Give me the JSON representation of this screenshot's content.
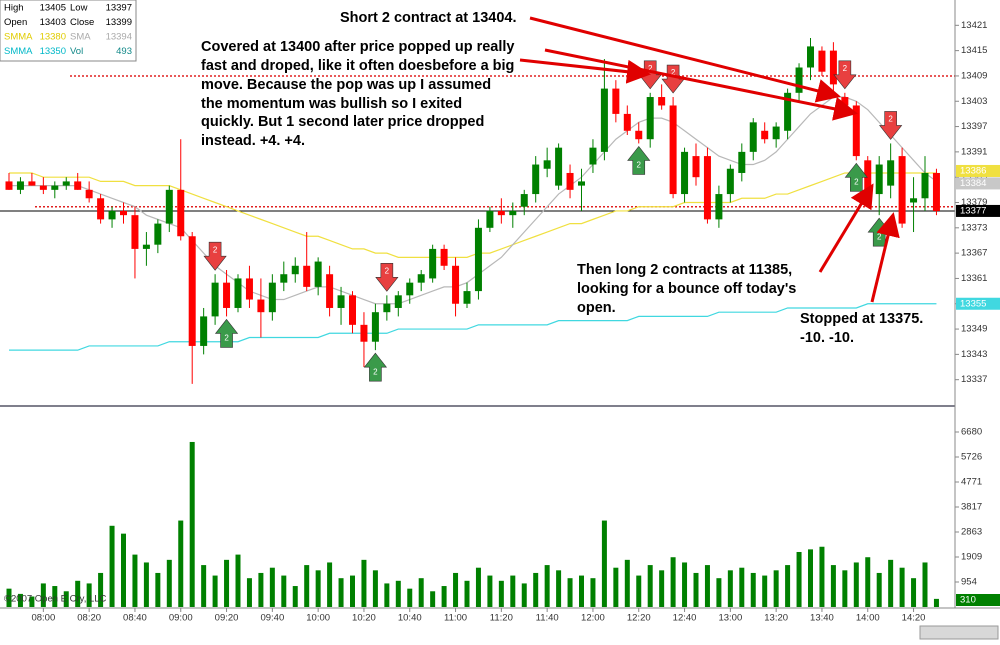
{
  "chart_data": [
    {
      "type": "candlestick",
      "categories": [
        null,
        null,
        null,
        "08:00",
        null,
        null,
        null,
        "08:20",
        null,
        null,
        null,
        "08:40",
        null,
        null,
        null,
        "09:00",
        null,
        null,
        null,
        "09:20",
        null,
        null,
        null,
        "09:40",
        null,
        null,
        null,
        "10:00",
        null,
        null,
        null,
        "10:20",
        null,
        null,
        null,
        "10:40",
        null,
        null,
        null,
        "11:00",
        null,
        null,
        null,
        "11:20",
        null,
        null,
        null,
        "11:40",
        null,
        null,
        null,
        "12:00",
        null,
        null,
        null,
        "12:20",
        null,
        null,
        null,
        "12:40",
        null,
        null,
        null,
        "13:00",
        null,
        null,
        null,
        "13:20",
        null,
        null,
        null,
        "13:40",
        null,
        null,
        null,
        "14:00",
        null,
        null,
        null,
        "14:20",
        null,
        null
      ],
      "open": [
        13384,
        13382,
        13384,
        13383,
        13382,
        13383,
        13384,
        13382,
        13380,
        13375,
        13377,
        13376,
        13368,
        13369,
        13374,
        13382,
        13371,
        13345,
        13352,
        13360,
        13354,
        13361,
        13356,
        13353,
        13360,
        13362,
        13364,
        13359,
        13362,
        13354,
        13357,
        13350,
        13346,
        13353,
        13354,
        13357,
        13360,
        13361,
        13368,
        13364,
        13355,
        13358,
        13373,
        13377,
        13376,
        13378,
        13381,
        13387,
        13383,
        13386,
        13383,
        13388,
        13391,
        13406,
        13400,
        13396,
        13394,
        13404,
        13402,
        13381,
        13390,
        13390,
        13375,
        13381,
        13386,
        13391,
        13396,
        13394,
        13396,
        13405,
        13411,
        13415,
        13415,
        13404,
        13402,
        13389,
        13381,
        13383,
        13390,
        13379,
        13380,
        13386
      ],
      "high": [
        13386,
        13385,
        13386,
        13385,
        13384,
        13385,
        13386,
        13384,
        13381,
        13378,
        13379,
        13378,
        13372,
        13375,
        13383,
        13394,
        13372,
        13354,
        13362,
        13363,
        13362,
        13364,
        13361,
        13362,
        13365,
        13366,
        13372,
        13366,
        13364,
        13359,
        13358,
        13353,
        13355,
        13357,
        13358,
        13361,
        13363,
        13369,
        13369,
        13366,
        13360,
        13375,
        13378,
        13380,
        13379,
        13382,
        13390,
        13392,
        13393,
        13388,
        13387,
        13394,
        13413,
        13408,
        13402,
        13398,
        13405,
        13407,
        13404,
        13392,
        13393,
        13392,
        13383,
        13388,
        13393,
        13399,
        13398,
        13398,
        13406,
        13412,
        13418,
        13416,
        13417,
        13405,
        13403,
        13390,
        13390,
        13393,
        13392,
        13385,
        13390,
        13387
      ],
      "low": [
        13382,
        13381,
        13383,
        13381,
        13380,
        13382,
        13382,
        13379,
        13374,
        13373,
        13374,
        13361,
        13364,
        13367,
        13372,
        13370,
        13336,
        13343,
        13350,
        13352,
        13353,
        13354,
        13347,
        13351,
        13358,
        13360,
        13358,
        13357,
        13352,
        13350,
        13348,
        13340,
        13344,
        13351,
        13352,
        13355,
        13358,
        13360,
        13363,
        13352,
        13354,
        13356,
        13372,
        13374,
        13373,
        13376,
        13379,
        13385,
        13382,
        13380,
        13377,
        13386,
        13389,
        13398,
        13395,
        13393,
        13392,
        13401,
        13380,
        13379,
        13383,
        13374,
        13373,
        13379,
        13384,
        13389,
        13393,
        13392,
        13394,
        13403,
        13408,
        13409,
        13405,
        13400,
        13389,
        13380,
        13376,
        13380,
        13373,
        13372,
        13377,
        13376
      ],
      "close": [
        13382,
        13384,
        13383,
        13382,
        13383,
        13384,
        13382,
        13380,
        13375,
        13377,
        13376,
        13368,
        13369,
        13374,
        13382,
        13371,
        13345,
        13352,
        13360,
        13354,
        13361,
        13356,
        13353,
        13360,
        13362,
        13364,
        13359,
        13365,
        13354,
        13357,
        13350,
        13346,
        13353,
        13355,
        13357,
        13360,
        13362,
        13368,
        13364,
        13355,
        13358,
        13373,
        13377,
        13376,
        13377,
        13381,
        13388,
        13389,
        13392,
        13382,
        13384,
        13392,
        13406,
        13400,
        13396,
        13394,
        13404,
        13402,
        13381,
        13391,
        13385,
        13375,
        13381,
        13387,
        13391,
        13398,
        13394,
        13397,
        13405,
        13411,
        13416,
        13410,
        13407,
        13402,
        13390,
        13381,
        13388,
        13389,
        13374,
        13380,
        13386,
        13377
      ],
      "up_color": "#008000",
      "down_color": "#ff0000",
      "series": [
        {
          "color": "#f0e040",
          "values": [
            13386,
            13386,
            13386,
            13385,
            13385,
            13385,
            13385,
            13385,
            13384,
            13384,
            13384,
            13383,
            13383,
            13383,
            13383,
            13382,
            13381,
            13380,
            13379,
            13378,
            13377,
            13376,
            13375,
            13374,
            13373,
            13372,
            13371,
            13371,
            13370,
            13369,
            13368,
            13368,
            13367,
            13367,
            13366,
            13366,
            13366,
            13366,
            13366,
            13366,
            13366,
            13367,
            13367,
            13368,
            13369,
            13370,
            13371,
            13372,
            13373,
            13374,
            13374,
            13375,
            13376,
            13377,
            13377,
            13378,
            13378,
            13378,
            13378,
            13379,
            13379,
            13379,
            13379,
            13379,
            13380,
            13380,
            13380,
            13381,
            13381,
            13382,
            13383,
            13384,
            13385,
            13386,
            13386,
            13386,
            13386,
            13386,
            13386,
            13386,
            13386,
            13386
          ]
        },
        {
          "color": "#b8b8b8",
          "values": [
            13383,
            13383,
            13383,
            13383,
            13383,
            13383,
            13383,
            13382,
            13381,
            13380,
            13379,
            13378,
            13376,
            13375,
            13374,
            13373,
            13370,
            13367,
            13364,
            13362,
            13360,
            13358,
            13357,
            13356,
            13356,
            13357,
            13358,
            13359,
            13359,
            13358,
            13357,
            13356,
            13355,
            13355,
            13355,
            13356,
            13357,
            13358,
            13359,
            13359,
            13360,
            13362,
            13364,
            13366,
            13369,
            13372,
            13375,
            13378,
            13381,
            13383,
            13385,
            13388,
            13391,
            13394,
            13396,
            13398,
            13399,
            13399,
            13398,
            13396,
            13394,
            13392,
            13390,
            13389,
            13388,
            13388,
            13389,
            13391,
            13394,
            13397,
            13400,
            13402,
            13404,
            13404,
            13403,
            13401,
            13398,
            13395,
            13392,
            13389,
            13386,
            13384
          ]
        },
        {
          "color": "#40d8e0",
          "values": [
            13344,
            13344,
            13344,
            13344,
            13344,
            13344,
            13344,
            13345,
            13345,
            13345,
            13345,
            13345,
            13345,
            13345,
            13346,
            13346,
            13346,
            13346,
            13346,
            13346,
            13346,
            13347,
            13347,
            13347,
            13347,
            13347,
            13347,
            13347,
            13348,
            13348,
            13348,
            13348,
            13348,
            13348,
            13349,
            13349,
            13349,
            13349,
            13349,
            13349,
            13349,
            13350,
            13350,
            13350,
            13350,
            13350,
            13350,
            13350,
            13351,
            13351,
            13351,
            13351,
            13351,
            13351,
            13351,
            13352,
            13352,
            13352,
            13352,
            13352,
            13352,
            13352,
            13353,
            13353,
            13353,
            13353,
            13353,
            13353,
            13354,
            13354,
            13354,
            13354,
            13354,
            13354,
            13354,
            13355,
            13355,
            13355,
            13355,
            13355,
            13355,
            13355
          ]
        }
      ],
      "hlines": [
        13409,
        13378
      ],
      "hline_color": "#e02020",
      "markers": [
        {
          "index": 18,
          "side": "sell",
          "qty": 2
        },
        {
          "index": 19,
          "side": "buy",
          "qty": 2
        },
        {
          "index": 33,
          "side": "sell",
          "qty": 2
        },
        {
          "index": 32,
          "side": "buy",
          "qty": 2
        },
        {
          "index": 56,
          "side": "sell",
          "qty": 2
        },
        {
          "index": 55,
          "side": "buy",
          "qty": 2
        },
        {
          "index": 58,
          "side": "sell",
          "qty": 2
        },
        {
          "index": 73,
          "side": "sell",
          "qty": 2
        },
        {
          "index": 77,
          "side": "sell",
          "qty": 2
        },
        {
          "index": 74,
          "side": "buy",
          "qty": 2
        },
        {
          "index": 76,
          "side": "buy",
          "qty": 2
        }
      ],
      "ylim": [
        13331,
        13427
      ],
      "yticks": [
        13337,
        13343,
        13349,
        13355,
        13361,
        13367,
        13373,
        13379,
        13385,
        13391,
        13397,
        13403,
        13409,
        13415,
        13421
      ]
    },
    {
      "type": "bar",
      "color": "#008000",
      "values": [
        700,
        500,
        400,
        900,
        800,
        600,
        1000,
        900,
        1300,
        3100,
        2800,
        2000,
        1700,
        1300,
        1800,
        3300,
        6300,
        1600,
        1200,
        1800,
        2000,
        1100,
        1300,
        1500,
        1200,
        800,
        1600,
        1400,
        1700,
        1100,
        1200,
        1800,
        1400,
        900,
        1000,
        700,
        1100,
        600,
        800,
        1300,
        1000,
        1500,
        1200,
        1000,
        1200,
        900,
        1300,
        1600,
        1400,
        1100,
        1200,
        1100,
        3300,
        1500,
        1800,
        1200,
        1600,
        1400,
        1900,
        1700,
        1300,
        1600,
        1100,
        1400,
        1500,
        1300,
        1200,
        1400,
        1600,
        2100,
        2200,
        2300,
        1600,
        1400,
        1700,
        1900,
        1300,
        1800,
        1500,
        1100,
        1700,
        310
      ],
      "ylim": [
        0,
        7520
      ],
      "yticks": [
        954,
        1909,
        2863,
        3817,
        4771,
        5726,
        6680
      ]
    }
  ],
  "info": [
    {
      "label": "High",
      "value": 13405,
      "color": "#000"
    },
    {
      "label": "Low",
      "value": 13397,
      "color": "#000"
    },
    {
      "label": "Open",
      "value": 13403,
      "color": "#000"
    },
    {
      "label": "Close",
      "value": 13399,
      "color": "#000"
    },
    {
      "label": "SMMA",
      "value": 13380,
      "color": "#e0cc00"
    },
    {
      "label": "SMA",
      "value": 13394,
      "color": "#aaaaaa"
    },
    {
      "label": "SMMA",
      "value": 13350,
      "color": "#00b8c8"
    },
    {
      "label": "Vol",
      "value": 493,
      "color": "#118888"
    }
  ],
  "annotations": {
    "short": "Short 2 contract at 13404.",
    "covered": [
      "Covered at 13400 after price popped up really",
      "fast and droped, like it often doesbefore a big",
      "move.  Because the pop was up I assumed",
      "the momentum was bullish so I exited",
      "quickly.  But 1 second later price dropped",
      "instead.  +4.  +4."
    ],
    "long": [
      "Then long 2 contracts at 11385,",
      "looking for a bounce off today's",
      "open."
    ],
    "stopped": [
      "Stopped at 13375.",
      "-10.  -10."
    ]
  },
  "copyright": "©2007 Open E Cry, LLC"
}
